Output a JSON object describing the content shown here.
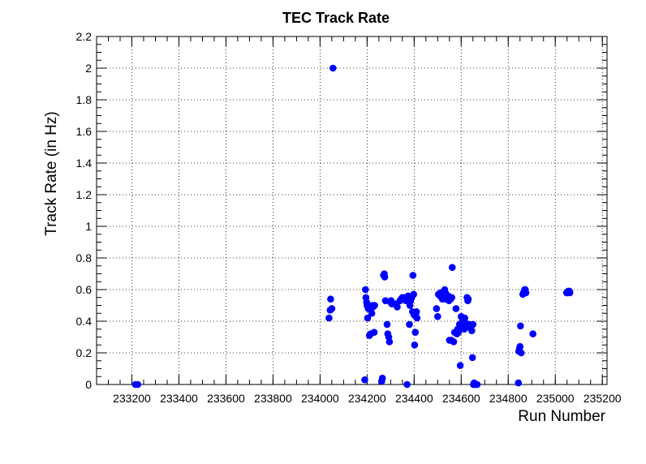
{
  "chart_data": {
    "type": "scatter",
    "title": "TEC Track Rate",
    "xlabel": "Run Number",
    "ylabel": "Track Rate (in Hz)",
    "xlim": [
      233050,
      235220
    ],
    "ylim": [
      0,
      2.2
    ],
    "xticks": [
      233200,
      233400,
      233600,
      233800,
      234000,
      234200,
      234400,
      234600,
      234800,
      235000,
      235200
    ],
    "xtick_labels": [
      "233200",
      "233400",
      "233600",
      "233800",
      "234000",
      "234200",
      "234400",
      "234600",
      "234800",
      "235000",
      "235200"
    ],
    "yticks": [
      0,
      0.2,
      0.4,
      0.6,
      0.8,
      1,
      1.2,
      1.4,
      1.6,
      1.8,
      2,
      2.2
    ],
    "ytick_labels": [
      "0",
      "0.2",
      "0.4",
      "0.6",
      "0.8",
      "1",
      "1.2",
      "1.4",
      "1.6",
      "1.8",
      "2",
      "2.2"
    ],
    "grid": true,
    "marker_color": "#0000ff",
    "series": [
      {
        "x": [
          233215,
          233225,
          234038,
          234043,
          234045,
          234050,
          234055,
          234190,
          234193,
          234195,
          234198,
          234200,
          234202,
          234205,
          234210,
          234215,
          234220,
          234222,
          234225,
          234228,
          234230,
          234232,
          234262,
          234265,
          234270,
          234273,
          234275,
          234278,
          234285,
          234288,
          234292,
          234295,
          234300,
          234302,
          234305,
          234322,
          234325,
          234328,
          234340,
          234345,
          234350,
          234360,
          234362,
          234365,
          234370,
          234375,
          234380,
          234382,
          234385,
          234390,
          234393,
          234395,
          234398,
          234400,
          234402,
          234405,
          234408,
          234410,
          234412,
          234495,
          234500,
          234503,
          234510,
          234512,
          234520,
          234523,
          234525,
          234528,
          234530,
          234533,
          234535,
          234540,
          234545,
          234548,
          234550,
          234552,
          234555,
          234558,
          234560,
          234562,
          234568,
          234572,
          234578,
          234582,
          234585,
          234588,
          234590,
          234593,
          234596,
          234600,
          234605,
          234610,
          234613,
          234615,
          234618,
          234620,
          234625,
          234628,
          234630,
          234635,
          234640,
          234645,
          234648,
          234650,
          234652,
          234655,
          234658,
          234660,
          234668,
          234843,
          234845,
          234848,
          234850,
          234852,
          234855,
          234862,
          234865,
          234868,
          234870,
          234872,
          234875,
          234905,
          235048,
          235052,
          235055,
          235060,
          235062
        ],
        "y": [
          0,
          0,
          0.42,
          0.47,
          0.54,
          0.48,
          2.0,
          0.03,
          0.6,
          0.55,
          0.52,
          0.5,
          0.42,
          0.48,
          0.31,
          0.32,
          0.45,
          0.5,
          0.49,
          0.5,
          0.33,
          0.5,
          0.02,
          0.04,
          0.69,
          0.7,
          0.68,
          0.53,
          0.38,
          0.32,
          0.3,
          0.27,
          0.52,
          0.53,
          0.51,
          0.51,
          0.5,
          0.49,
          0.53,
          0.54,
          0.55,
          0.55,
          0.54,
          0.53,
          0,
          0.56,
          0.38,
          0.5,
          0.53,
          0.55,
          0.46,
          0.69,
          0.57,
          0.44,
          0.25,
          0.33,
          0.43,
          0.46,
          0.42,
          0.48,
          0.43,
          0.57,
          0.56,
          0.58,
          0.54,
          0.57,
          0.55,
          0.56,
          0.6,
          0.58,
          0.54,
          0.55,
          0.56,
          0.53,
          0.28,
          0.55,
          0.54,
          0.28,
          0.55,
          0.74,
          0.27,
          0.33,
          0.48,
          0.32,
          0.35,
          0.33,
          0.34,
          0.38,
          0.12,
          0.43,
          0.4,
          0.38,
          0.35,
          0.42,
          0.39,
          0.36,
          0.55,
          0.53,
          0.54,
          0.38,
          0.37,
          0.34,
          0.17,
          0.38,
          0,
          0.01,
          0,
          0,
          0,
          0.01,
          0.21,
          0.23,
          0.24,
          0.37,
          0.2,
          0.57,
          0.58,
          0.59,
          0.6,
          0.6,
          0.58,
          0.32,
          0.58,
          0.58,
          0.59,
          0.59,
          0.58
        ]
      }
    ]
  }
}
